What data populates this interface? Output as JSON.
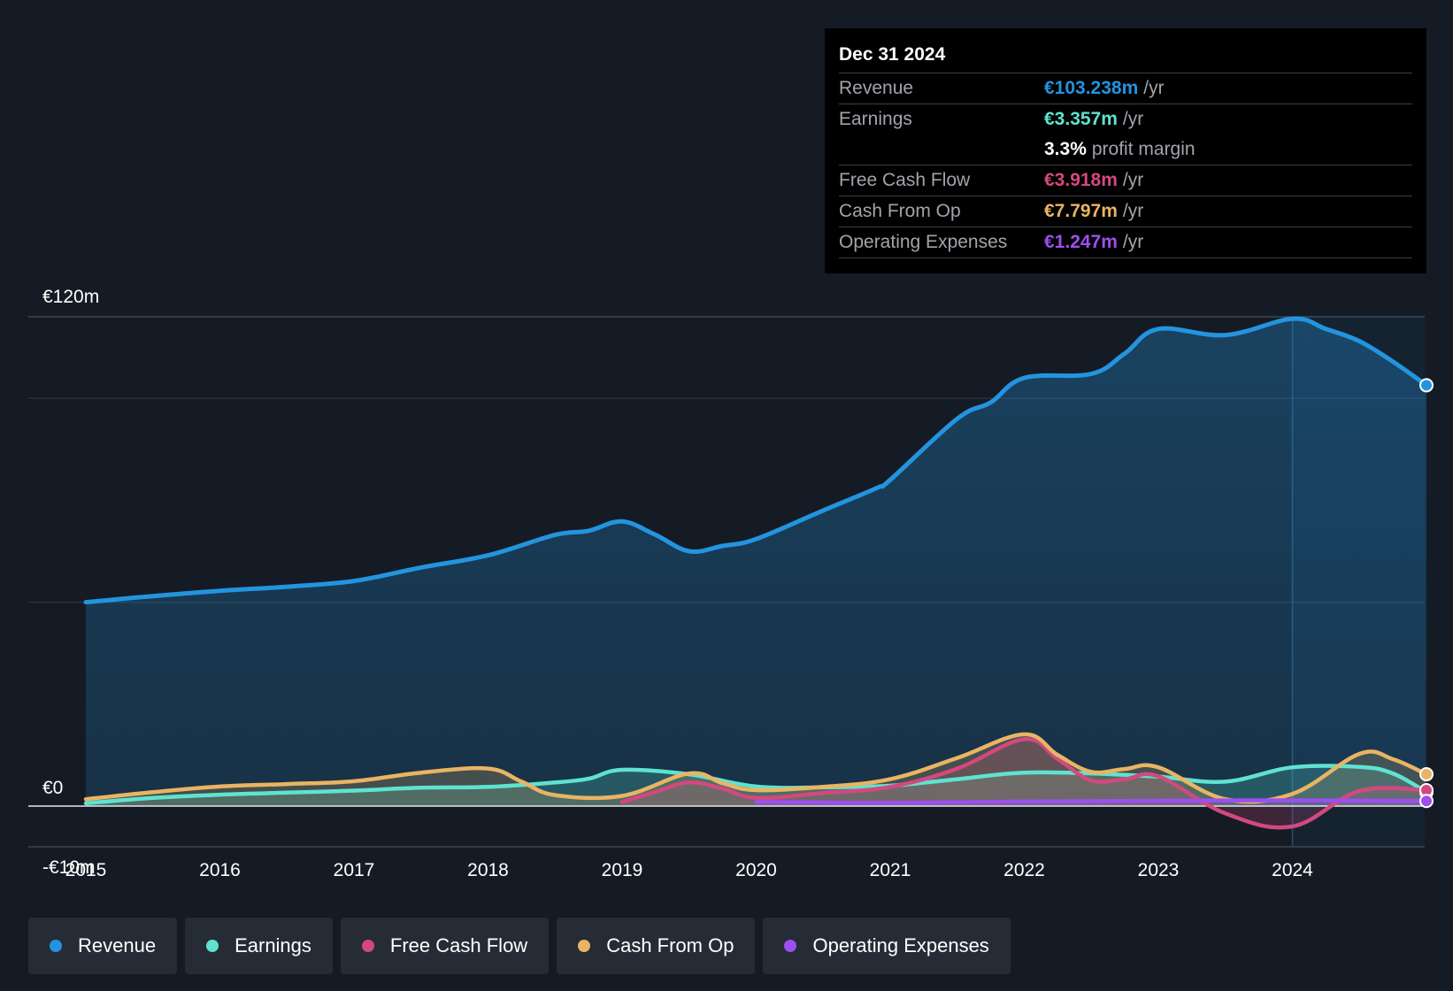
{
  "tooltip": {
    "date": "Dec 31 2024",
    "revenue_label": "Revenue",
    "revenue_value": "€103.238m",
    "earnings_label": "Earnings",
    "earnings_value": "€3.357m",
    "margin_value": "3.3%",
    "margin_label": "profit margin",
    "fcf_label": "Free Cash Flow",
    "fcf_value": "€3.918m",
    "cfo_label": "Cash From Op",
    "cfo_value": "€7.797m",
    "opex_label": "Operating Expenses",
    "opex_value": "€1.247m",
    "unit": "/yr"
  },
  "legend": {
    "revenue": "Revenue",
    "earnings": "Earnings",
    "fcf": "Free Cash Flow",
    "cfo": "Cash From Op",
    "opex": "Operating Expenses"
  },
  "colors": {
    "revenue": "#2394df",
    "earnings": "#5ee3cf",
    "fcf": "#d2497f",
    "cfo": "#e9b463",
    "opex": "#9d4ff0"
  },
  "chart_data": {
    "type": "line",
    "title": "",
    "y_tick_labels": [
      "€120m",
      "€0",
      "-€10m"
    ],
    "ylim": [
      -10,
      120
    ],
    "x_tick_labels": [
      "2015",
      "2016",
      "2017",
      "2018",
      "2019",
      "2020",
      "2021",
      "2022",
      "2023",
      "2024"
    ],
    "highlight_x": 2024.0,
    "series": [
      {
        "name": "Revenue",
        "key": "revenue",
        "points": [
          [
            2015.0,
            50.0
          ],
          [
            2015.5,
            51.5
          ],
          [
            2016.0,
            52.8
          ],
          [
            2016.5,
            53.8
          ],
          [
            2017.0,
            55.2
          ],
          [
            2017.5,
            58.5
          ],
          [
            2018.0,
            61.5
          ],
          [
            2018.5,
            66.5
          ],
          [
            2018.75,
            67.5
          ],
          [
            2019.0,
            69.8
          ],
          [
            2019.25,
            66.5
          ],
          [
            2019.5,
            62.5
          ],
          [
            2019.75,
            63.8
          ],
          [
            2020.0,
            65.5
          ],
          [
            2020.5,
            72.5
          ],
          [
            2020.9,
            78.0
          ],
          [
            2021.0,
            80.0
          ],
          [
            2021.5,
            95.0
          ],
          [
            2021.75,
            99.0
          ],
          [
            2022.0,
            105.0
          ],
          [
            2022.5,
            106.0
          ],
          [
            2022.75,
            111.0
          ],
          [
            2023.0,
            117.0
          ],
          [
            2023.5,
            115.5
          ],
          [
            2024.0,
            119.5
          ],
          [
            2024.25,
            117.0
          ],
          [
            2024.5,
            114.0
          ],
          [
            2024.75,
            109.0
          ],
          [
            2025.0,
            103.2
          ]
        ]
      },
      {
        "name": "Earnings",
        "key": "earnings",
        "points": [
          [
            2015.0,
            0.7
          ],
          [
            2015.5,
            2.0
          ],
          [
            2016.0,
            2.8
          ],
          [
            2016.5,
            3.3
          ],
          [
            2017.0,
            3.8
          ],
          [
            2017.5,
            4.5
          ],
          [
            2018.0,
            4.7
          ],
          [
            2018.5,
            5.8
          ],
          [
            2018.75,
            6.7
          ],
          [
            2019.0,
            8.9
          ],
          [
            2019.5,
            7.8
          ],
          [
            2020.0,
            4.8
          ],
          [
            2020.5,
            4.6
          ],
          [
            2021.0,
            5.0
          ],
          [
            2021.5,
            6.6
          ],
          [
            2022.0,
            8.2
          ],
          [
            2022.5,
            8.0
          ],
          [
            2023.0,
            7.2
          ],
          [
            2023.5,
            6.0
          ],
          [
            2024.0,
            9.5
          ],
          [
            2024.5,
            9.6
          ],
          [
            2024.75,
            8.0
          ],
          [
            2025.0,
            3.4
          ]
        ]
      },
      {
        "name": "Free Cash Flow",
        "key": "fcf",
        "points": [
          [
            2019.0,
            1.0
          ],
          [
            2019.25,
            3.5
          ],
          [
            2019.5,
            5.8
          ],
          [
            2019.75,
            4.3
          ],
          [
            2020.0,
            2.0
          ],
          [
            2020.5,
            3.2
          ],
          [
            2021.0,
            4.7
          ],
          [
            2021.5,
            9.2
          ],
          [
            2022.0,
            16.4
          ],
          [
            2022.25,
            11.5
          ],
          [
            2022.5,
            6.3
          ],
          [
            2022.75,
            6.6
          ],
          [
            2023.0,
            7.3
          ],
          [
            2023.5,
            -1.8
          ],
          [
            2024.0,
            -5.0
          ],
          [
            2024.5,
            3.7
          ],
          [
            2025.0,
            3.9
          ]
        ]
      },
      {
        "name": "Cash From Op",
        "key": "cfo",
        "points": [
          [
            2015.0,
            1.7
          ],
          [
            2015.5,
            3.4
          ],
          [
            2016.0,
            4.8
          ],
          [
            2016.5,
            5.4
          ],
          [
            2017.0,
            6.1
          ],
          [
            2017.5,
            8.2
          ],
          [
            2018.0,
            9.2
          ],
          [
            2018.25,
            6.0
          ],
          [
            2018.5,
            2.7
          ],
          [
            2019.0,
            2.5
          ],
          [
            2019.5,
            8.0
          ],
          [
            2019.75,
            5.6
          ],
          [
            2020.0,
            3.9
          ],
          [
            2020.5,
            4.7
          ],
          [
            2021.0,
            6.6
          ],
          [
            2021.5,
            11.8
          ],
          [
            2022.0,
            17.6
          ],
          [
            2022.25,
            12.5
          ],
          [
            2022.5,
            8.4
          ],
          [
            2022.75,
            9.1
          ],
          [
            2023.0,
            9.5
          ],
          [
            2023.5,
            1.7
          ],
          [
            2024.0,
            3.0
          ],
          [
            2024.5,
            12.8
          ],
          [
            2024.75,
            11.5
          ],
          [
            2025.0,
            7.8
          ]
        ]
      },
      {
        "name": "Operating Expenses",
        "key": "opex",
        "points": [
          [
            2020.0,
            1.0
          ],
          [
            2021.0,
            0.8
          ],
          [
            2022.0,
            1.1
          ],
          [
            2023.0,
            1.3
          ],
          [
            2024.0,
            1.4
          ],
          [
            2025.0,
            1.25
          ]
        ]
      }
    ]
  }
}
